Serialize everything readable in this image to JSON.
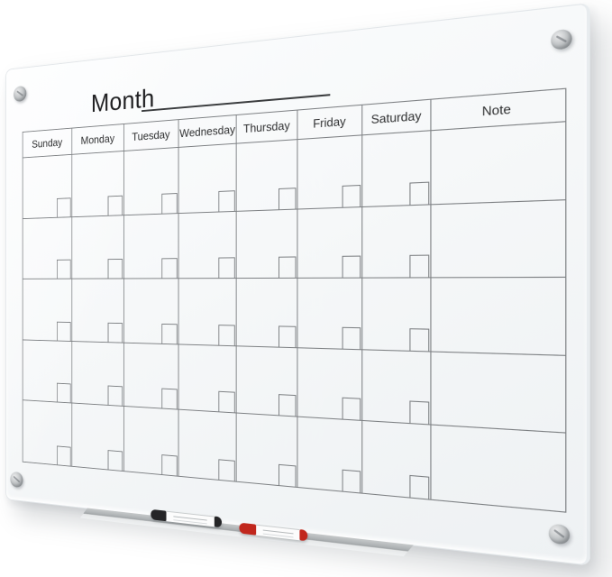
{
  "board": {
    "title": "Month",
    "note_header": "Note",
    "day_headers": [
      "Sunday",
      "Monday",
      "Tuesday",
      "Wednesday",
      "Thursday",
      "Friday",
      "Saturday"
    ],
    "grid": {
      "rows": 5,
      "day_columns": 7,
      "has_note_column": true,
      "date_box_per_day_cell": true
    },
    "screw_count": 4,
    "markers": [
      {
        "id": "black-dry-erase-marker",
        "cap_color": "#252527",
        "body_color": "#fcfcfc"
      },
      {
        "id": "red-dry-erase-marker",
        "cap_color": "#c1271d",
        "body_color": "#fcfcfc"
      }
    ],
    "colors": {
      "page_bg": "#ffffff",
      "glass_light": "#fcfdfe",
      "glass_mid": "#f6f8f9",
      "glass_dark": "#eef1f3",
      "grid_line": "#7d8083",
      "text": "#2e2f30",
      "title_text": "#202022",
      "underline": "#3a3c3e",
      "tray_top": "#aeb2b4",
      "tray_face": "#eff1f2",
      "screw_hi": "#e9eaeb",
      "screw_lo": "#8e9294"
    }
  }
}
